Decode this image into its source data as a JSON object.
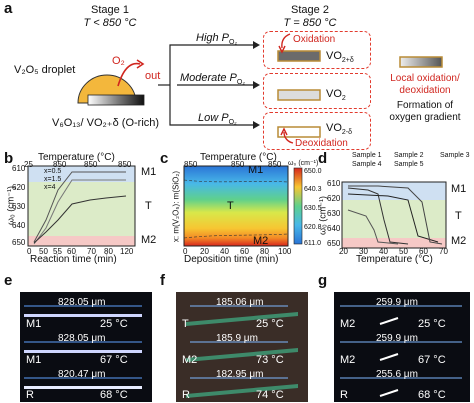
{
  "panel_labels": {
    "a": "a",
    "b": "b",
    "c": "c",
    "d": "d",
    "e": "e",
    "f": "f",
    "g": "g"
  },
  "panel_a": {
    "stage1_title": "Stage 1",
    "stage1_temp": "T < 850 °C",
    "stage2_title": "Stage 2",
    "stage2_temp": "T = 850 °C",
    "droplet_label": "V₂O₅ droplet",
    "o2_label": "O₂",
    "out_label": "out",
    "base_label": "V₆O₁₃/ VO₂₊δ (O-rich)",
    "branches": [
      {
        "condition": "High P",
        "subscript": "O₂",
        "product": "VO",
        "product_sub": "2+δ",
        "annotation": "Oxidation"
      },
      {
        "condition": "Moderate P",
        "subscript": "O₂",
        "product": "VO",
        "product_sub": "2",
        "annotation": ""
      },
      {
        "condition": "Low P",
        "subscript": "O₂",
        "product": "VO",
        "product_sub": "2-δ",
        "annotation": "Deoxidation"
      }
    ],
    "right_caption_red": "Local oxidation/ deoxidation",
    "right_caption_black": "Formation of oxygen gradient"
  },
  "panel_b": {
    "top_axis_label": "Temperature (°C)",
    "top_ticks": [
      "25",
      "850",
      "850",
      "850"
    ],
    "bottom_ticks": [
      "0",
      "50",
      "55",
      "60",
      "70",
      "80",
      "120"
    ],
    "y_ticks": [
      "610",
      "620",
      "630",
      "640",
      "650"
    ],
    "xlabel": "Reaction time (min)",
    "ylabel": "ω₀ (cm⁻¹)",
    "legend": [
      "x=0.5",
      "x=1.5",
      "x=4"
    ],
    "region_labels": [
      "M1",
      "T",
      "M2"
    ],
    "region_colors": {
      "M1": "#cfe0f2",
      "T": "#dcebc8",
      "M2": "#f6c9c6"
    }
  },
  "panel_c": {
    "top_axis_label": "Temperature (°C)",
    "top_ticks": [
      "850",
      "850",
      "850"
    ],
    "x_ticks": [
      "0",
      "20",
      "40",
      "60",
      "80",
      "100"
    ],
    "xlabel": "Deposition time (min)",
    "ylabel": "x: m(V₂O₅): m(SiO₂)",
    "region_labels": [
      "M1",
      "T",
      "M2"
    ],
    "colorbar_title": "ω₀ (cm⁻¹)",
    "colorbar_ticks": [
      "650.0",
      "640.3",
      "630.5",
      "620.8",
      "611.0"
    ]
  },
  "panel_d": {
    "legend": [
      "Sample 1",
      "Sample 2",
      "Sample 3",
      "Sample 4",
      "Sample 5"
    ],
    "y_ticks": [
      "610",
      "620",
      "630",
      "640",
      "650"
    ],
    "x_ticks": [
      "20",
      "30",
      "40",
      "50",
      "60",
      "70"
    ],
    "xlabel": "Temperature (°C)",
    "ylabel": "ω₀ (cm⁻¹)",
    "region_labels": [
      "M1",
      "T",
      "M2"
    ]
  },
  "panel_e": {
    "rows": [
      {
        "length": "828.05 μm",
        "phase": "M1",
        "temp": "25 °C"
      },
      {
        "length": "828.05 μm",
        "phase": "M1",
        "temp": "67 °C"
      },
      {
        "length": "820.47 μm",
        "phase": "R",
        "temp": "68 °C"
      }
    ]
  },
  "panel_f": {
    "rows": [
      {
        "length": "185.06 μm",
        "phase": "T",
        "temp": "25 °C"
      },
      {
        "length": "185.9 μm",
        "phase": "M2",
        "temp": "73 °C"
      },
      {
        "length": "182.95 μm",
        "phase": "R",
        "temp": "74 °C"
      }
    ]
  },
  "panel_g": {
    "rows": [
      {
        "length": "259.9 μm",
        "phase": "M2",
        "temp": "25 °C"
      },
      {
        "length": "259.9 μm",
        "phase": "M2",
        "temp": "67 °C"
      },
      {
        "length": "255.6 μm",
        "phase": "R",
        "temp": "68 °C"
      }
    ]
  }
}
